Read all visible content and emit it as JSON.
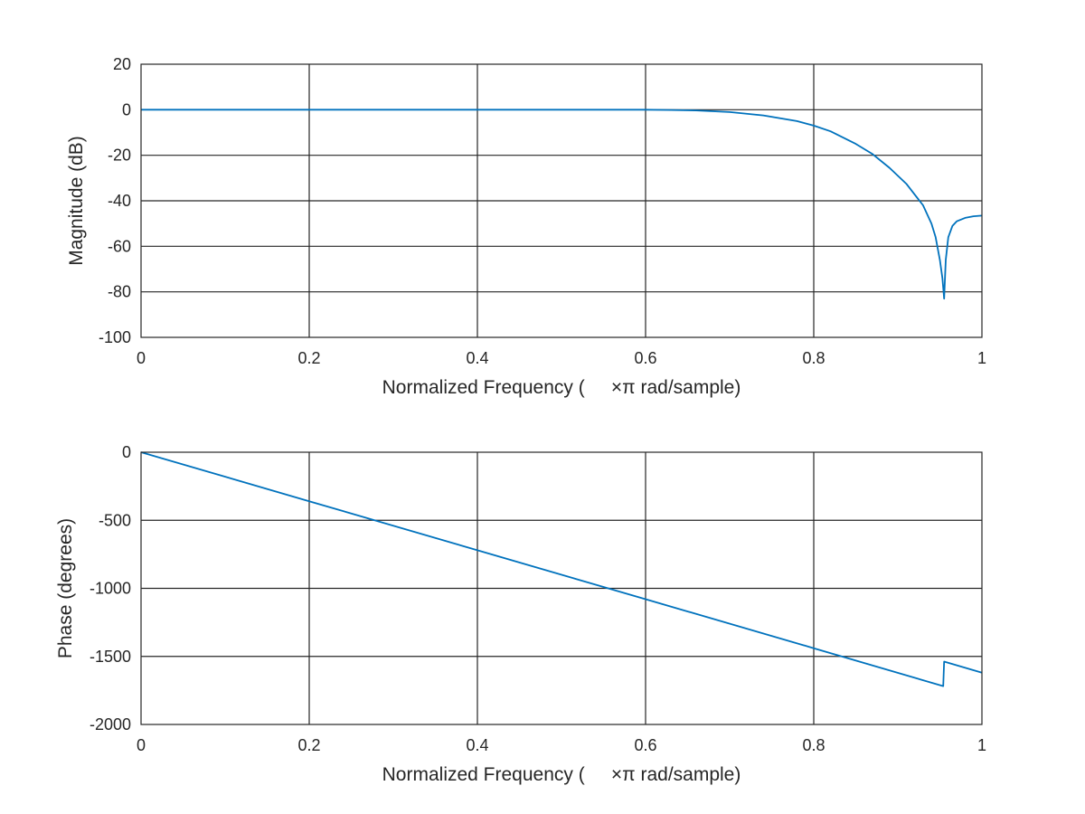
{
  "colors": {
    "series": "#0072bd",
    "axes": "#262626",
    "background": "#ffffff"
  },
  "chart_data": [
    {
      "type": "line",
      "xlabel": "Normalized Frequency (     ×π rad/sample)",
      "ylabel": "Magnitude (dB)",
      "xlim": [
        0,
        1
      ],
      "ylim": [
        -100,
        20
      ],
      "grid": true,
      "xticks": [
        0,
        0.2,
        0.4,
        0.6,
        0.8,
        1
      ],
      "xtick_labels": [
        "0",
        "0.2",
        "0.4",
        "0.6",
        "0.8",
        "1"
      ],
      "yticks": [
        20,
        0,
        -20,
        -40,
        -60,
        -80,
        -100
      ],
      "ytick_labels": [
        "20",
        "0",
        "-20",
        "-40",
        "-60",
        "-80",
        "-100"
      ],
      "series": [
        {
          "x": [
            0,
            0.1,
            0.2,
            0.3,
            0.4,
            0.5,
            0.6,
            0.63,
            0.66,
            0.7,
            0.74,
            0.78,
            0.8,
            0.82,
            0.85,
            0.87,
            0.89,
            0.91,
            0.93,
            0.94,
            0.945,
            0.95,
            0.953,
            0.955,
            0.957,
            0.96,
            0.965,
            0.97,
            0.98,
            0.99,
            1.0
          ],
          "y": [
            0,
            0,
            0,
            0,
            0,
            0,
            0,
            -0.1,
            -0.3,
            -1,
            -2.5,
            -5,
            -7,
            -9.5,
            -15,
            -19.5,
            -25.5,
            -32.5,
            -42,
            -50,
            -56,
            -66,
            -74,
            -83,
            -66,
            -56,
            -51,
            -49,
            -47.5,
            -46.8,
            -46.5
          ]
        }
      ]
    },
    {
      "type": "line",
      "xlabel": "Normalized Frequency (     ×π rad/sample)",
      "ylabel": "Phase (degrees)",
      "xlim": [
        0,
        1
      ],
      "ylim": [
        -2000,
        0
      ],
      "grid": true,
      "xticks": [
        0,
        0.2,
        0.4,
        0.6,
        0.8,
        1
      ],
      "xtick_labels": [
        "0",
        "0.2",
        "0.4",
        "0.6",
        "0.8",
        "1"
      ],
      "yticks": [
        0,
        -500,
        -1000,
        -1500,
        -2000
      ],
      "ytick_labels": [
        "0",
        "-500",
        "-1000",
        "-1500",
        "-2000"
      ],
      "series": [
        {
          "x": [
            0,
            0.2,
            0.4,
            0.6,
            0.8,
            0.954,
            0.955,
            1.0
          ],
          "y": [
            0,
            -360,
            -720,
            -1080,
            -1440,
            -1718,
            -1538,
            -1620
          ]
        }
      ]
    }
  ]
}
